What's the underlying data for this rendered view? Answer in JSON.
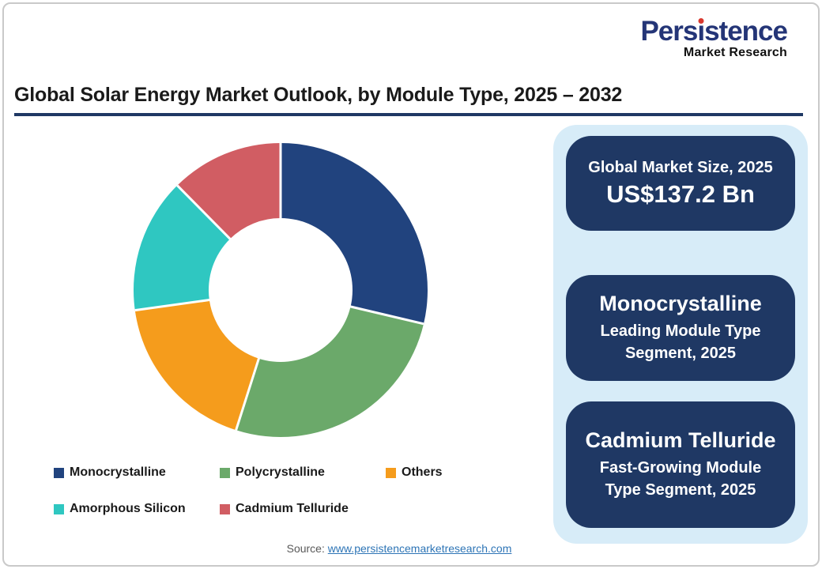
{
  "logo": {
    "brand_prefix": "Pers",
    "brand_dotless_i": "ı",
    "brand_suffix": "stence",
    "tagline": "Market Research",
    "brand_color": "#243577",
    "dot_color": "#D9382E"
  },
  "header": {
    "title": "Global Solar Energy Market Outlook, by Module Type, 2025 – 2032",
    "underline_color": "#1F3864"
  },
  "chart_data": {
    "type": "pie",
    "subtype": "donut",
    "title": "Global Solar Energy Market Outlook, by Module Type, 2025 – 2032",
    "categories": [
      "Monocrystalline",
      "Polycrystalline",
      "Others",
      "Amorphous Silicon",
      "Cadmium Telluride"
    ],
    "values": [
      28.7,
      26.2,
      17.9,
      14.8,
      12.4
    ],
    "value_note": "percent share of ring, estimated from arc angles; no data labels shown",
    "colors": [
      "#21437E",
      "#6BA96A",
      "#F59C1C",
      "#2FC7C1",
      "#D15D63"
    ],
    "start_angle_deg": 0,
    "direction": "clockwise",
    "donut_hole_ratio": 0.49,
    "separator_color": "#FFFFFF",
    "legend_position": "bottom-left"
  },
  "sidebar": {
    "background": "#D7ECF8",
    "card_background": "#1F3864",
    "cards": [
      {
        "line1": "Global Market Size, 2025",
        "line2": "US$137.2 Bn"
      },
      {
        "line1": "Monocrystalline",
        "line2": "Leading Module Type Segment, 2025"
      },
      {
        "line1": "Cadmium Telluride",
        "line2": "Fast-Growing Module Type Segment, 2025"
      }
    ]
  },
  "footer": {
    "source_prefix": "Source: ",
    "source_link": "www.persistencemarketresearch.com"
  }
}
